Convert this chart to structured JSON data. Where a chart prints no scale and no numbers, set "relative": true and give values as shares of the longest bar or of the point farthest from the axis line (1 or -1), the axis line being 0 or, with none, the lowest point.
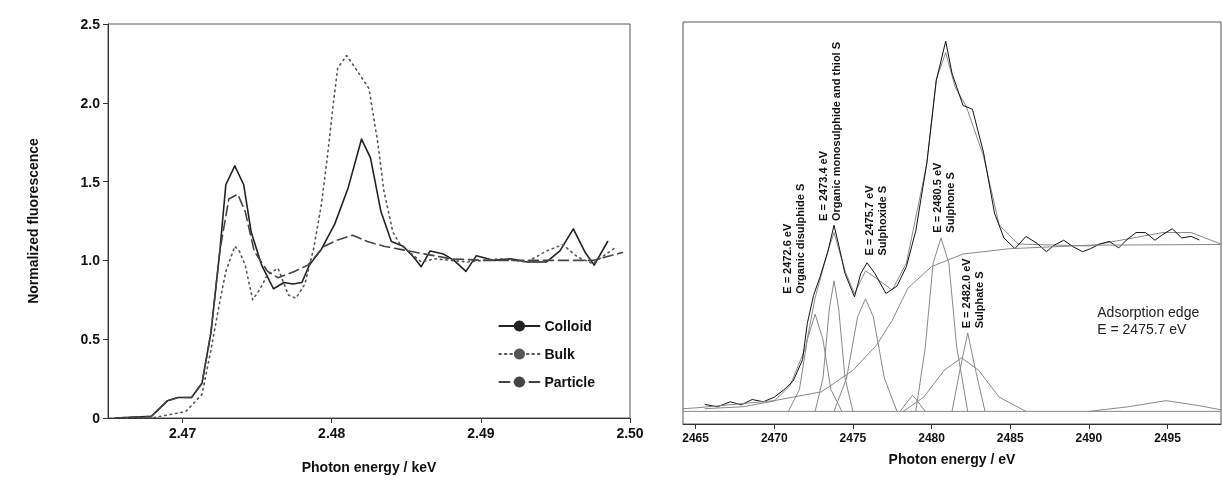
{
  "chart_data": [
    {
      "type": "line",
      "xlabel": "Photon energy / keV",
      "ylabel": "Normalized fluorescence",
      "xlim": [
        2.465,
        2.5
      ],
      "xticks": [
        2.47,
        2.48,
        2.49,
        {
          "value": 2.5,
          "label": "2.50"
        }
      ],
      "ylim": [
        0,
        2.5
      ],
      "yticks": [
        0,
        0.5,
        {
          "value": 1,
          "label": "1.0"
        },
        1.5,
        {
          "value": 2,
          "label": "2.0"
        },
        2.5
      ],
      "legend": "bottom right",
      "marker": "none",
      "series": [
        {
          "name": "Colloid",
          "color": "#222222",
          "line_style": "solid",
          "x": [
            2.4655,
            2.4679,
            2.469,
            2.4697,
            2.4706,
            2.4713,
            2.4719,
            2.4725,
            2.4729,
            2.4735,
            2.4741,
            2.4746,
            2.4753,
            2.4761,
            2.4768,
            2.4774,
            2.478,
            2.4785,
            2.4793,
            2.4802,
            2.4811,
            2.482,
            2.4826,
            2.4833,
            2.484,
            2.4848,
            2.4855,
            2.486,
            2.4866,
            2.4875,
            2.4882,
            2.489,
            2.4897,
            2.4909,
            2.492,
            2.4931,
            2.4944,
            2.4953,
            2.4962,
            2.497,
            2.4976,
            2.4985
          ],
          "values": [
            0,
            0.01,
            0.11,
            0.13,
            0.13,
            0.22,
            0.54,
            1.06,
            1.48,
            1.6,
            1.48,
            1.18,
            0.97,
            0.82,
            0.86,
            0.85,
            0.86,
            0.97,
            1.07,
            1.23,
            1.46,
            1.77,
            1.65,
            1.31,
            1.12,
            1.09,
            1.02,
            0.96,
            1.06,
            1.04,
            1.0,
            0.93,
            1.03,
            1.0,
            1.01,
            0.99,
            0.99,
            1.06,
            1.2,
            1.05,
            0.97,
            1.12
          ]
        },
        {
          "name": "Bulk",
          "color": "#555555",
          "line_style": "dotted",
          "x": [
            2.4655,
            2.4679,
            2.4702,
            2.4713,
            2.4719,
            2.4725,
            2.4729,
            2.4735,
            2.4738,
            2.4742,
            2.4747,
            2.4752,
            2.4757,
            2.4764,
            2.4771,
            2.4776,
            2.4782,
            2.4788,
            2.4793,
            2.4797,
            2.4801,
            2.4804,
            2.481,
            2.4818,
            2.4825,
            2.4831,
            2.4835,
            2.4841,
            2.4846,
            2.486,
            2.4869,
            2.4891,
            2.4913,
            2.4931,
            2.4944,
            2.4955,
            2.4965,
            2.4975,
            2.499
          ],
          "values": [
            0,
            0,
            0.04,
            0.15,
            0.43,
            0.74,
            0.93,
            1.09,
            1.06,
            0.97,
            0.75,
            0.82,
            0.91,
            0.95,
            0.78,
            0.76,
            0.85,
            1.08,
            1.35,
            1.65,
            1.99,
            2.22,
            2.3,
            2.19,
            2.09,
            1.74,
            1.44,
            1.18,
            1.1,
            0.99,
            1.01,
            0.99,
            1.01,
            0.99,
            1.06,
            1.1,
            1.02,
            0.98,
            1.08
          ]
        },
        {
          "name": "Particle",
          "color": "#444444",
          "line_style": "dashed",
          "x": [
            2.4655,
            2.4679,
            2.469,
            2.4697,
            2.4706,
            2.4713,
            2.4719,
            2.4725,
            2.4731,
            2.4737,
            2.4742,
            2.4748,
            2.4757,
            2.4764,
            2.4775,
            2.4784,
            2.4795,
            2.4804,
            2.4814,
            2.4824,
            2.4835,
            2.4846,
            2.4857,
            2.488,
            2.4902,
            2.4924,
            2.4944,
            2.4975,
            2.4995
          ],
          "values": [
            0,
            0.01,
            0.11,
            0.13,
            0.13,
            0.22,
            0.54,
            1.06,
            1.39,
            1.42,
            1.31,
            1.06,
            0.93,
            0.89,
            0.93,
            0.97,
            1.09,
            1.13,
            1.16,
            1.12,
            1.09,
            1.07,
            1.05,
            1.01,
            1.0,
            1.0,
            1.0,
            1.0,
            1.05
          ]
        }
      ]
    },
    {
      "type": "line",
      "xlabel": "Photon energy / eV",
      "relative": true,
      "xlim": [
        2464.2,
        2498.4
      ],
      "xticks": [
        2465,
        2470,
        2475,
        2480,
        2485,
        2490,
        2495
      ],
      "tick_labels": "x",
      "marker": "none",
      "annotations": [
        "E = 2472.6 eV\nOrganic disulphide S",
        "E = 2473.4 eV\nOrganic monosulphide and thiol S",
        "E = 2475.7 eV\nSulphoxide S",
        "E = 2480.5 eV\nSulphone S",
        "E = 2482.0 eV\nSulphate S",
        "Adsorption edge\nE = 2475.7 eV"
      ],
      "series": [
        {
          "color": "#888888",
          "line_style": "solid",
          "x": [
            2465.6,
            2468,
            2470,
            2471,
            2472,
            2472.6,
            2473.4,
            2473.8,
            2474.5,
            2475.1,
            2475.8,
            2476.5,
            2477.5,
            2478.4,
            2479.7,
            2480.3,
            2480.9,
            2481.5,
            2482.2,
            2483.3,
            2484.3,
            2485.5,
            2490,
            2494.7,
            2496.5,
            2498.4
          ],
          "values": [
            0.04,
            0.045,
            0.06,
            0.1,
            0.2,
            0.33,
            0.45,
            0.5,
            0.4,
            0.34,
            0.4,
            0.38,
            0.35,
            0.42,
            0.68,
            0.9,
            0.97,
            0.88,
            0.83,
            0.7,
            0.52,
            0.47,
            0.465,
            0.5,
            0.5,
            0.47
          ]
        },
        {
          "color": "#111111",
          "line_style": "solid",
          "x": [
            2465.6,
            2466.4,
            2467.2,
            2467.9,
            2468.6,
            2469.3,
            2470,
            2470.6,
            2471.2,
            2471.8,
            2472.1,
            2472.5,
            2472.9,
            2473.4,
            2473.8,
            2474.1,
            2474.5,
            2475.1,
            2475.5,
            2475.9,
            2476.4,
            2477.1,
            2477.8,
            2478.4,
            2479,
            2479.7,
            2480.3,
            2480.9,
            2481.3,
            2482,
            2482.6,
            2483.3,
            2484,
            2484.6,
            2485.3,
            2486,
            2486.7,
            2487.3,
            2487.8,
            2488.4,
            2489,
            2489.6,
            2490.1,
            2490.7,
            2491.3,
            2491.9,
            2492.4,
            2493,
            2493.6,
            2494.2,
            2494.7,
            2495.3,
            2495.9,
            2496.5,
            2497
          ],
          "values": [
            0.051,
            0.045,
            0.058,
            0.05,
            0.064,
            0.058,
            0.07,
            0.089,
            0.112,
            0.168,
            0.262,
            0.336,
            0.383,
            0.449,
            0.519,
            0.467,
            0.393,
            0.332,
            0.393,
            0.421,
            0.393,
            0.341,
            0.36,
            0.411,
            0.505,
            0.682,
            0.897,
            1.0,
            0.916,
            0.832,
            0.822,
            0.71,
            0.551,
            0.486,
            0.458,
            0.49,
            0.472,
            0.45,
            0.467,
            0.48,
            0.463,
            0.45,
            0.458,
            0.47,
            0.477,
            0.46,
            0.481,
            0.5,
            0.5,
            0.48,
            0.495,
            0.51,
            0.486,
            0.49,
            0.481
          ]
        },
        {
          "color": "#888888",
          "line_style": "solid",
          "x": [
            2464.2,
            2498.4
          ],
          "values": [
            0.033,
            0.033
          ]
        },
        {
          "color": "#888888",
          "line_style": "solid",
          "x": [
            2464.2,
            2465,
            2470,
            2473,
            2475,
            2476.5,
            2477.5,
            2478.5,
            2480,
            2482,
            2485,
            2490,
            2498.4
          ],
          "values": [
            0.04,
            0.042,
            0.061,
            0.084,
            0.14,
            0.206,
            0.271,
            0.355,
            0.411,
            0.444,
            0.458,
            0.467,
            0.469
          ]
        },
        {
          "color": "#888888",
          "line_style": "solid",
          "x": [
            2470.9,
            2471.6,
            2472.1,
            2472.6,
            2473.1,
            2473.6,
            2474.3
          ],
          "values": [
            0.033,
            0.09,
            0.22,
            0.287,
            0.22,
            0.09,
            0.033
          ]
        },
        {
          "color": "#888888",
          "line_style": "solid",
          "x": [
            2472.6,
            2473.1,
            2473.5,
            2473.8,
            2474.1,
            2474.5,
            2475
          ],
          "values": [
            0.033,
            0.12,
            0.3,
            0.374,
            0.3,
            0.12,
            0.033
          ]
        },
        {
          "color": "#888888",
          "line_style": "solid",
          "x": [
            2473.8,
            2474.6,
            2475.3,
            2475.8,
            2476.3,
            2477,
            2477.8
          ],
          "values": [
            0.033,
            0.12,
            0.28,
            0.327,
            0.28,
            0.12,
            0.033
          ]
        },
        {
          "color": "#888888",
          "line_style": "solid",
          "x": [
            2478,
            2478.5,
            2478.8,
            2479.1,
            2479.6
          ],
          "values": [
            0.033,
            0.06,
            0.075,
            0.06,
            0.033
          ]
        },
        {
          "color": "#888888",
          "line_style": "solid",
          "x": [
            2479,
            2479.6,
            2480.1,
            2480.6,
            2481.1,
            2481.6,
            2482.3
          ],
          "values": [
            0.033,
            0.2,
            0.42,
            0.486,
            0.42,
            0.2,
            0.033
          ]
        },
        {
          "color": "#888888",
          "line_style": "solid",
          "x": [
            2481.3,
            2481.8,
            2482.3,
            2482.8,
            2483.4
          ],
          "values": [
            0.033,
            0.14,
            0.238,
            0.14,
            0.033
          ]
        },
        {
          "color": "#888888",
          "line_style": "solid",
          "x": [
            2478.2,
            2479.5,
            2480.8,
            2481.9,
            2483,
            2484.3,
            2486
          ],
          "values": [
            0.033,
            0.07,
            0.14,
            0.173,
            0.14,
            0.07,
            0.033
          ]
        },
        {
          "color": "#888888",
          "line_style": "solid",
          "x": [
            2490,
            2492.5,
            2494.9,
            2497,
            2498.4
          ],
          "values": [
            0.033,
            0.045,
            0.061,
            0.048,
            0.037
          ]
        }
      ]
    }
  ]
}
